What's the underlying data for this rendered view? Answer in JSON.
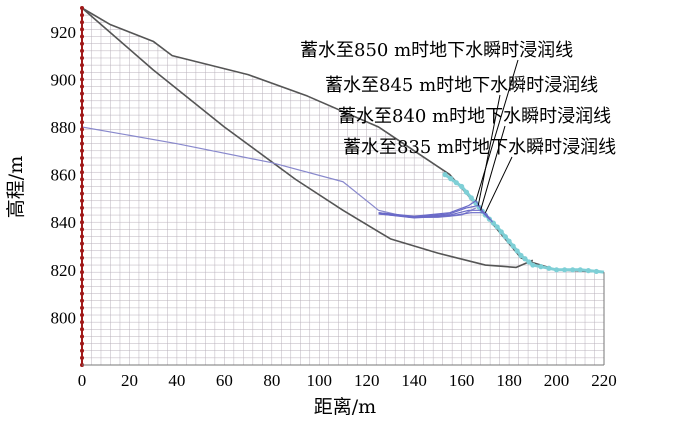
{
  "chart_data": {
    "type": "line",
    "xlabel": "距离/m",
    "ylabel": "高程/m",
    "xlim": [
      0,
      220
    ],
    "ylim": [
      780,
      930
    ],
    "xticks": [
      0,
      20,
      40,
      60,
      80,
      100,
      120,
      140,
      160,
      180,
      200,
      220
    ],
    "yticks": [
      800,
      820,
      840,
      860,
      880,
      900,
      920
    ],
    "mesh_grid": true,
    "annotations": [
      {
        "text": "蓄水至850 m时地下水瞬时浸润线",
        "point": [
          166,
          849
        ]
      },
      {
        "text": "蓄水至845 m时地下水瞬时浸润线",
        "point": [
          167,
          847
        ]
      },
      {
        "text": "蓄水至840 m时地下水瞬时浸润线",
        "point": [
          168,
          845
        ]
      },
      {
        "text": "蓄水至835 m时地下水瞬时浸润线",
        "point": [
          170,
          844
        ]
      }
    ],
    "series": [
      {
        "role": "ground-surface",
        "color": "#555555",
        "x": [
          0,
          12,
          30,
          38,
          70,
          95,
          125,
          155,
          170,
          185,
          190,
          200,
          220
        ],
        "y": [
          930,
          923,
          916,
          910,
          902,
          893,
          880,
          860,
          843,
          825,
          823,
          820,
          819
        ]
      },
      {
        "role": "slip-surface",
        "color": "#555555",
        "x": [
          0,
          30,
          60,
          90,
          110,
          130,
          150,
          170,
          183,
          190
        ],
        "y": [
          930,
          904,
          880,
          858,
          845,
          833,
          827,
          822,
          821,
          824
        ]
      },
      {
        "role": "initial-water-table",
        "color": "#8888cc",
        "x": [
          0,
          40,
          80,
          110,
          125,
          138,
          150,
          160,
          166
        ],
        "y": [
          880,
          873,
          865,
          857,
          845,
          842,
          842,
          843,
          846
        ]
      },
      {
        "role": "reservoir-water-boundary",
        "color": "#7ecfd6",
        "x": [
          153,
          160,
          166,
          170,
          175,
          180,
          185,
          190,
          200,
          210,
          220
        ],
        "y": [
          860,
          855,
          848,
          843,
          838,
          832,
          826,
          822,
          820,
          820,
          819
        ]
      },
      {
        "name": "850 m",
        "color": "#6a6ac8",
        "x": [
          125,
          140,
          155,
          163,
          166,
          170
        ],
        "y": [
          844,
          842.5,
          844,
          847,
          849,
          843
        ]
      },
      {
        "name": "845 m",
        "color": "#6a6ac8",
        "x": [
          125,
          140,
          155,
          162,
          167,
          171
        ],
        "y": [
          844,
          842.2,
          843.5,
          846,
          847,
          842
        ]
      },
      {
        "name": "840 m",
        "color": "#6a6ac8",
        "x": [
          125,
          140,
          155,
          163,
          168,
          172
        ],
        "y": [
          843.5,
          842,
          843,
          845,
          845,
          841
        ]
      },
      {
        "name": "835 m",
        "color": "#6a6ac8",
        "x": [
          125,
          140,
          155,
          164,
          170,
          173
        ],
        "y": [
          843.5,
          841.8,
          842.6,
          844,
          844,
          840
        ]
      }
    ]
  }
}
